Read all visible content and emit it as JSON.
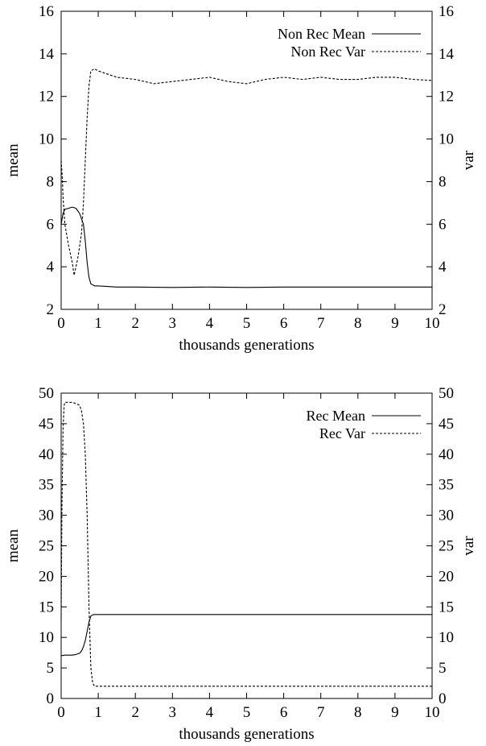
{
  "chart_data": [
    {
      "type": "line",
      "xlabel": "thousands generations",
      "ylabel": "mean",
      "y2label": "var",
      "xlim": [
        0,
        10
      ],
      "ylim": [
        2,
        16
      ],
      "y2lim": [
        2,
        16
      ],
      "xticks": [
        "0",
        "1",
        "2",
        "3",
        "4",
        "5",
        "6",
        "7",
        "8",
        "9",
        "10"
      ],
      "yticks": [
        "2",
        "4",
        "6",
        "8",
        "10",
        "12",
        "14",
        "16"
      ],
      "y2ticks": [
        "2",
        "4",
        "6",
        "8",
        "10",
        "12",
        "14",
        "16"
      ],
      "grid": false,
      "legend_position": "top-right",
      "series": [
        {
          "name": "Non Rec Mean",
          "style": "solid",
          "x": [
            0,
            0.05,
            0.1,
            0.2,
            0.3,
            0.4,
            0.5,
            0.6,
            0.65,
            0.7,
            0.75,
            0.8,
            0.9,
            1.0,
            1.5,
            2,
            3,
            4,
            5,
            6,
            7,
            8,
            9,
            10
          ],
          "y": [
            6.0,
            6.5,
            6.7,
            6.75,
            6.8,
            6.75,
            6.5,
            6.0,
            5.2,
            4.2,
            3.5,
            3.2,
            3.1,
            3.1,
            3.05,
            3.05,
            3.03,
            3.05,
            3.03,
            3.05,
            3.05,
            3.05,
            3.05,
            3.05
          ]
        },
        {
          "name": "Non Rec Var",
          "style": "dashed",
          "x": [
            0,
            0.03,
            0.05,
            0.1,
            0.2,
            0.3,
            0.35,
            0.45,
            0.55,
            0.6,
            0.65,
            0.7,
            0.75,
            0.8,
            0.9,
            1.0,
            1.5,
            2,
            2.5,
            3,
            3.5,
            4,
            4.5,
            5,
            5.5,
            6,
            6.5,
            7,
            7.5,
            8,
            8.5,
            9,
            9.5,
            10
          ],
          "y": [
            9.0,
            8.2,
            7.3,
            6.0,
            5.0,
            4.2,
            3.6,
            4.4,
            5.6,
            7.0,
            9.0,
            11.0,
            12.5,
            13.2,
            13.3,
            13.2,
            12.9,
            12.8,
            12.6,
            12.7,
            12.8,
            12.9,
            12.7,
            12.6,
            12.8,
            12.9,
            12.8,
            12.9,
            12.8,
            12.8,
            12.9,
            12.9,
            12.8,
            12.75
          ]
        }
      ]
    },
    {
      "type": "line",
      "xlabel": "thousands generations",
      "ylabel": "mean",
      "y2label": "var",
      "xlim": [
        0,
        10
      ],
      "ylim": [
        0,
        50
      ],
      "y2lim": [
        0,
        50
      ],
      "xticks": [
        "0",
        "1",
        "2",
        "3",
        "4",
        "5",
        "6",
        "7",
        "8",
        "9",
        "10"
      ],
      "yticks": [
        "0",
        "5",
        "10",
        "15",
        "20",
        "25",
        "30",
        "35",
        "40",
        "45",
        "50"
      ],
      "y2ticks": [
        "0",
        "5",
        "10",
        "15",
        "20",
        "25",
        "30",
        "35",
        "40",
        "45",
        "50"
      ],
      "grid": false,
      "legend_position": "top-right",
      "series": [
        {
          "name": "Rec Mean",
          "style": "solid",
          "x": [
            0,
            0.1,
            0.2,
            0.3,
            0.4,
            0.5,
            0.55,
            0.6,
            0.65,
            0.7,
            0.75,
            0.8,
            0.85,
            0.9,
            1.0,
            2,
            3,
            4,
            5,
            6,
            7,
            8,
            9,
            10
          ],
          "y": [
            7.0,
            7.1,
            7.1,
            7.1,
            7.2,
            7.4,
            7.8,
            8.5,
            9.5,
            11.0,
            12.5,
            13.5,
            13.7,
            13.75,
            13.75,
            13.75,
            13.75,
            13.75,
            13.75,
            13.75,
            13.75,
            13.75,
            13.75,
            13.75
          ]
        },
        {
          "name": "Rec Var",
          "style": "dashed",
          "x": [
            0,
            0.02,
            0.05,
            0.08,
            0.1,
            0.15,
            0.2,
            0.3,
            0.4,
            0.5,
            0.55,
            0.6,
            0.65,
            0.7,
            0.75,
            0.8,
            0.85,
            0.9,
            1.0,
            1.5,
            2,
            3,
            4,
            5,
            6,
            7,
            8,
            9,
            10
          ],
          "y": [
            13,
            30,
            44,
            48,
            48.5,
            48.5,
            48.5,
            48.5,
            48.3,
            48.0,
            47.0,
            45.0,
            40.0,
            30.0,
            15.0,
            5.0,
            2.5,
            2.0,
            2.0,
            2.0,
            2.0,
            2.0,
            2.0,
            2.0,
            2.0,
            2.0,
            2.0,
            2.0,
            2.0
          ]
        }
      ]
    }
  ]
}
